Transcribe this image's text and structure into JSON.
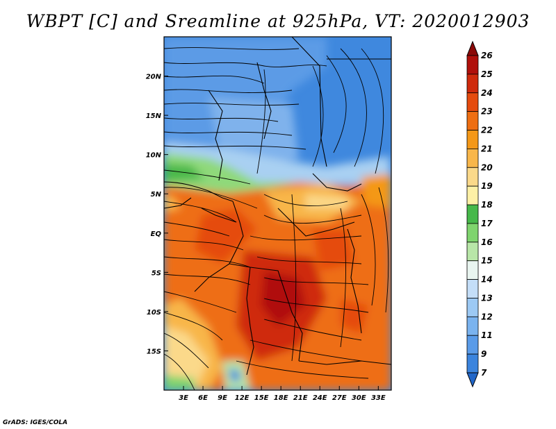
{
  "title": "WBPT [C] and Sreamline at 925hPa, VT: 2020012903",
  "footer": "GrADS: IGES/COLA",
  "map": {
    "lon_range": [
      0,
      35
    ],
    "lat_range": [
      -20,
      25
    ],
    "x_ticks": [
      "3E",
      "6E",
      "9E",
      "12E",
      "15E",
      "18E",
      "21E",
      "24E",
      "27E",
      "30E",
      "33E"
    ],
    "x_tick_values": [
      3,
      6,
      9,
      12,
      15,
      18,
      21,
      24,
      27,
      30,
      33
    ],
    "y_ticks": [
      "20N",
      "15N",
      "10N",
      "5N",
      "EQ",
      "5S",
      "10S",
      "15S"
    ],
    "y_tick_values": [
      20,
      15,
      10,
      5,
      0,
      -5,
      -10,
      -15
    ]
  },
  "colorbar": {
    "labels": [
      "7",
      "9",
      "11",
      "12",
      "13",
      "14",
      "15",
      "16",
      "17",
      "18",
      "19",
      "20",
      "21",
      "22",
      "23",
      "24",
      "25",
      "26"
    ],
    "colors": [
      "#2166c8",
      "#3b84dd",
      "#5a9be8",
      "#7ab3ef",
      "#9cc9f4",
      "#c4def8",
      "#e9f5f0",
      "#b8e6a8",
      "#7fd46e",
      "#46b84a",
      "#fdf0a6",
      "#fbd98a",
      "#f8b64a",
      "#f49818",
      "#ee6e12",
      "#e54b0e",
      "#cf2a0c",
      "#b0100b",
      "#8b0a08"
    ]
  }
}
